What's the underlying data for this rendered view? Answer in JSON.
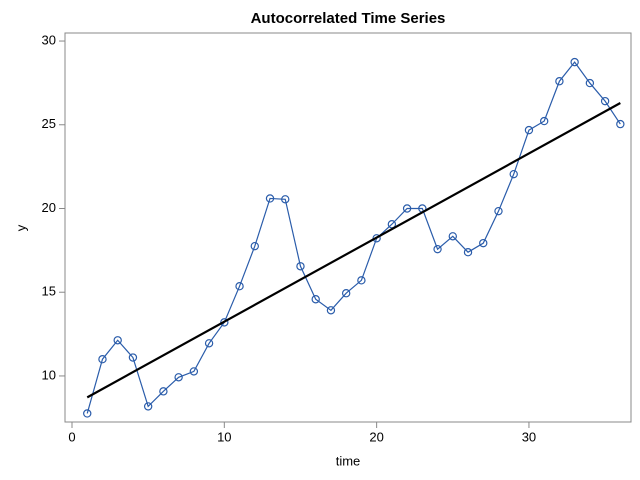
{
  "chart_data": {
    "type": "line",
    "title": "Autocorrelated Time Series",
    "x_label": "time",
    "y_label": "y",
    "x": [
      1,
      2,
      3,
      4,
      5,
      6,
      7,
      8,
      9,
      10,
      11,
      12,
      13,
      14,
      15,
      16,
      17,
      18,
      19,
      20,
      21,
      22,
      23,
      24,
      25,
      26,
      27,
      28,
      29,
      30,
      31,
      32,
      33,
      34,
      35,
      36
    ],
    "series": [
      {
        "color": "#2a5caa",
        "marker": "circle",
        "values": [
          7.76,
          11.0,
          12.13,
          11.1,
          8.18,
          9.08,
          9.92,
          10.27,
          11.95,
          13.2,
          15.36,
          17.75,
          20.6,
          20.55,
          16.55,
          14.58,
          13.92,
          14.94,
          15.71,
          18.22,
          19.06,
          20.0,
          20.0,
          17.57,
          18.34,
          17.39,
          17.93,
          19.84,
          22.05,
          24.68,
          25.22,
          27.6,
          28.74,
          27.49,
          26.41,
          25.04
        ]
      },
      {
        "color": "#000000",
        "x": [
          1,
          36
        ],
        "values": [
          8.72,
          26.3
        ]
      }
    ],
    "xlim": [
      -0.46,
      36.7
    ],
    "ylim": [
      7.25,
      30.48
    ],
    "xticks": [
      0,
      10,
      20,
      30
    ],
    "yticks": [
      10,
      15,
      20,
      25,
      30
    ],
    "grid": false
  }
}
